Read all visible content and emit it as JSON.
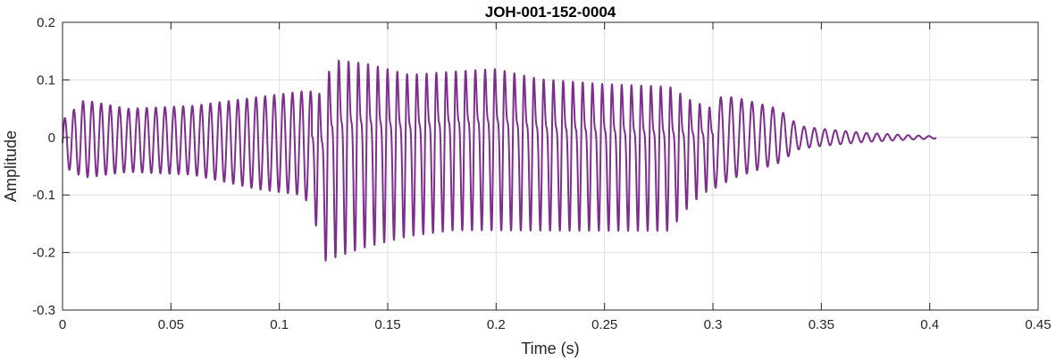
{
  "chart_data": {
    "type": "line",
    "title": "JOH-001-152-0004",
    "xlabel": "Time (s)",
    "ylabel": "Amplitude",
    "xlim": [
      0,
      0.45
    ],
    "ylim": [
      -0.3,
      0.2
    ],
    "xticks": [
      0,
      0.05,
      0.1,
      0.15,
      0.2,
      0.25,
      0.3,
      0.35,
      0.4,
      0.45
    ],
    "xtick_labels": [
      "0",
      "0.05",
      "0.1",
      "0.15",
      "0.2",
      "0.25",
      "0.3",
      "0.35",
      "0.4",
      "0.45"
    ],
    "yticks": [
      -0.3,
      -0.2,
      -0.1,
      0,
      0.1,
      0.2
    ],
    "ytick_labels": [
      "-0.3",
      "-0.2",
      "-0.1",
      "0",
      "0.1",
      "0.2"
    ],
    "grid": true,
    "series": [
      {
        "color": "#7E2F8E",
        "x_start": 0,
        "x_end": 0.403,
        "envelope": {
          "x": [
            0,
            0.01,
            0.03,
            0.06,
            0.09,
            0.11,
            0.115,
            0.12,
            0.125,
            0.14,
            0.16,
            0.18,
            0.2,
            0.22,
            0.25,
            0.28,
            0.29,
            0.3,
            0.31,
            0.33,
            0.34,
            0.35,
            0.37,
            0.39,
            0.403
          ],
          "upper": [
            0.03,
            0.065,
            0.05,
            0.055,
            0.07,
            0.08,
            0.08,
            0.13,
            0.185,
            0.175,
            0.15,
            0.155,
            0.16,
            0.14,
            0.13,
            0.125,
            0.09,
            0.07,
            0.07,
            0.05,
            0.02,
            0.015,
            0.008,
            0.004,
            0.002
          ],
          "lower": [
            -0.05,
            -0.07,
            -0.06,
            -0.065,
            -0.09,
            -0.1,
            -0.12,
            -0.225,
            -0.22,
            -0.2,
            -0.18,
            -0.17,
            -0.17,
            -0.17,
            -0.17,
            -0.17,
            -0.12,
            -0.09,
            -0.07,
            -0.045,
            -0.02,
            -0.015,
            -0.008,
            -0.004,
            -0.002
          ]
        },
        "oscillation": {
          "periods": [
            {
              "x_from": 0,
              "x_to": 0.115,
              "period": 0.0042
            },
            {
              "x_from": 0.115,
              "x_to": 0.3,
              "period": 0.0045
            },
            {
              "x_from": 0.3,
              "x_to": 0.403,
              "period": 0.0048
            }
          ],
          "second_formant_from": 0.115,
          "second_formant_to": 0.3
        }
      }
    ]
  }
}
